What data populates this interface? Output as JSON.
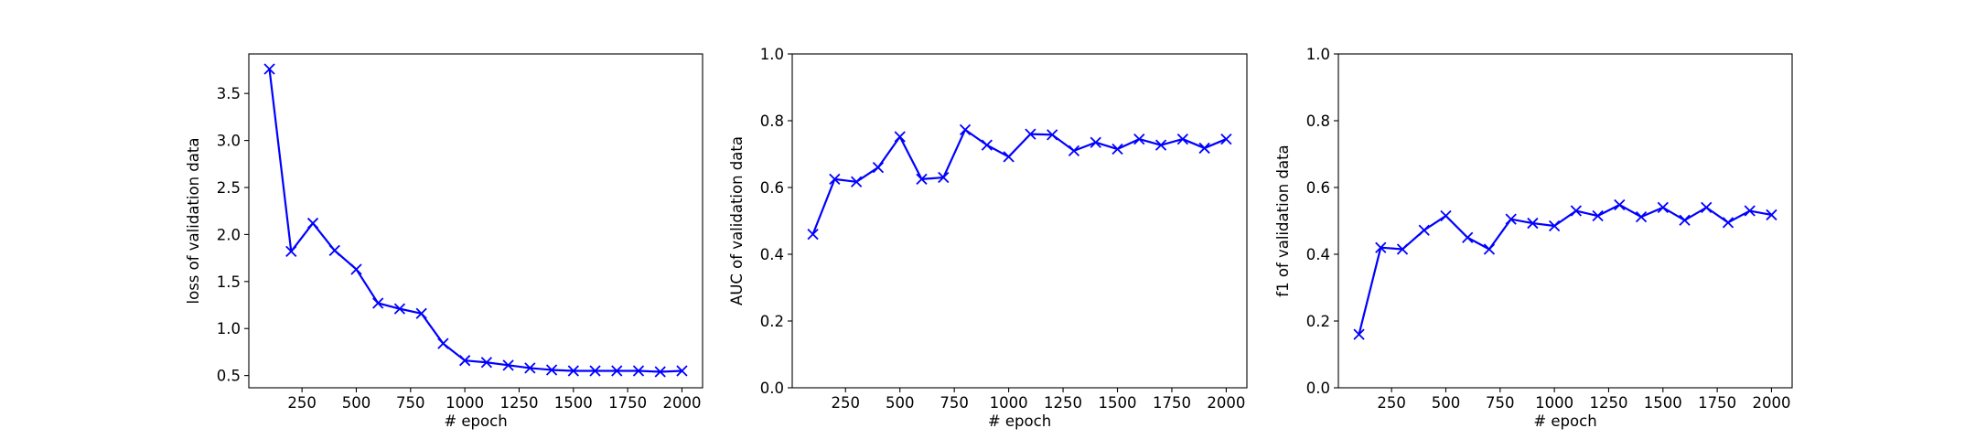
{
  "chart_data": [
    {
      "type": "line",
      "xlabel": "# epoch",
      "ylabel": "loss of validation data",
      "xlim": [
        5,
        2095
      ],
      "ylim": [
        0.37,
        3.92
      ],
      "xticks": [
        250,
        500,
        750,
        1000,
        1250,
        1500,
        1750,
        2000
      ],
      "xtick_labels": [
        "250",
        "500",
        "750",
        "1000",
        "1250",
        "1500",
        "1750",
        "2000"
      ],
      "yticks": [
        0.5,
        1.0,
        1.5,
        2.0,
        2.5,
        3.0,
        3.5
      ],
      "ytick_labels": [
        "0.5",
        "1.0",
        "1.5",
        "2.0",
        "2.5",
        "3.0",
        "3.5"
      ],
      "grid": false,
      "color": "#0000ff",
      "marker": "x",
      "x": [
        100,
        200,
        300,
        400,
        500,
        600,
        700,
        800,
        900,
        1000,
        1100,
        1200,
        1300,
        1400,
        1500,
        1600,
        1700,
        1800,
        1900,
        2000
      ],
      "y": [
        3.76,
        1.82,
        2.12,
        1.83,
        1.63,
        1.27,
        1.21,
        1.16,
        0.84,
        0.66,
        0.64,
        0.61,
        0.58,
        0.56,
        0.55,
        0.55,
        0.55,
        0.55,
        0.54,
        0.55
      ]
    },
    {
      "type": "line",
      "xlabel": "# epoch",
      "ylabel": "AUC of validation data",
      "xlim": [
        5,
        2095
      ],
      "ylim": [
        0.0,
        1.0
      ],
      "xticks": [
        250,
        500,
        750,
        1000,
        1250,
        1500,
        1750,
        2000
      ],
      "xtick_labels": [
        "250",
        "500",
        "750",
        "1000",
        "1250",
        "1500",
        "1750",
        "2000"
      ],
      "yticks": [
        0.0,
        0.2,
        0.4,
        0.6,
        0.8,
        1.0
      ],
      "ytick_labels": [
        "0.0",
        "0.2",
        "0.4",
        "0.6",
        "0.8",
        "1.0"
      ],
      "grid": false,
      "color": "#0000ff",
      "marker": "x",
      "x": [
        100,
        200,
        300,
        400,
        500,
        600,
        700,
        800,
        900,
        1000,
        1100,
        1200,
        1300,
        1400,
        1500,
        1600,
        1700,
        1800,
        1900,
        2000
      ],
      "y": [
        0.46,
        0.625,
        0.617,
        0.66,
        0.752,
        0.625,
        0.63,
        0.773,
        0.727,
        0.692,
        0.76,
        0.758,
        0.71,
        0.735,
        0.715,
        0.745,
        0.727,
        0.745,
        0.718,
        0.745
      ]
    },
    {
      "type": "line",
      "xlabel": "# epoch",
      "ylabel": "f1 of validation data",
      "xlim": [
        5,
        2095
      ],
      "ylim": [
        0.0,
        1.0
      ],
      "xticks": [
        250,
        500,
        750,
        1000,
        1250,
        1500,
        1750,
        2000
      ],
      "xtick_labels": [
        "250",
        "500",
        "750",
        "1000",
        "1250",
        "1500",
        "1750",
        "2000"
      ],
      "yticks": [
        0.0,
        0.2,
        0.4,
        0.6,
        0.8,
        1.0
      ],
      "ytick_labels": [
        "0.0",
        "0.2",
        "0.4",
        "0.6",
        "0.8",
        "1.0"
      ],
      "grid": false,
      "color": "#0000ff",
      "marker": "x",
      "x": [
        100,
        200,
        300,
        400,
        500,
        600,
        700,
        800,
        900,
        1000,
        1100,
        1200,
        1300,
        1400,
        1500,
        1600,
        1700,
        1800,
        1900,
        2000
      ],
      "y": [
        0.16,
        0.42,
        0.415,
        0.472,
        0.515,
        0.45,
        0.415,
        0.505,
        0.493,
        0.485,
        0.53,
        0.515,
        0.548,
        0.512,
        0.54,
        0.502,
        0.54,
        0.495,
        0.53,
        0.518
      ]
    }
  ]
}
